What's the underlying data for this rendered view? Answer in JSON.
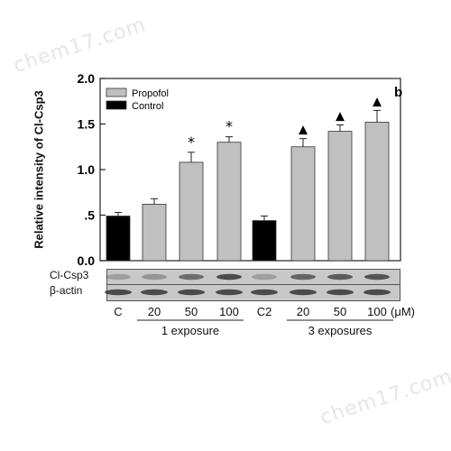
{
  "watermark": "chem17.com",
  "chart_data": {
    "type": "bar",
    "panel_label": "b",
    "ylabel": "Relative intensity of Cl-Csp3",
    "ylim": [
      0,
      2.0
    ],
    "yticks": [
      0.0,
      0.5,
      1.0,
      1.5,
      2.0
    ],
    "ytick_labels": [
      "0.0",
      ".5",
      "1.0",
      "1.5",
      "2.0"
    ],
    "grid": false,
    "legend": [
      {
        "name": "Propofol",
        "color": "#c0c0c0"
      },
      {
        "name": "Control",
        "color": "#000000"
      }
    ],
    "categories": [
      "C",
      "20",
      "50",
      "100",
      "C2",
      "20",
      "50",
      "100"
    ],
    "values": [
      0.49,
      0.62,
      1.08,
      1.3,
      0.44,
      1.25,
      1.42,
      1.52
    ],
    "errors": [
      0.04,
      0.06,
      0.11,
      0.06,
      0.05,
      0.09,
      0.07,
      0.13
    ],
    "groups": [
      "Control",
      "Propofol",
      "Propofol",
      "Propofol",
      "Control",
      "Propofol",
      "Propofol",
      "Propofol"
    ],
    "markers": [
      "",
      "",
      "*",
      "*",
      "",
      "▲",
      "▲",
      "▲"
    ],
    "unit_label": "(μM)",
    "exposure_groups": [
      "1 exposure",
      "3 exposures"
    ],
    "blot_labels": [
      "Cl-Csp3",
      "β-actin"
    ]
  }
}
